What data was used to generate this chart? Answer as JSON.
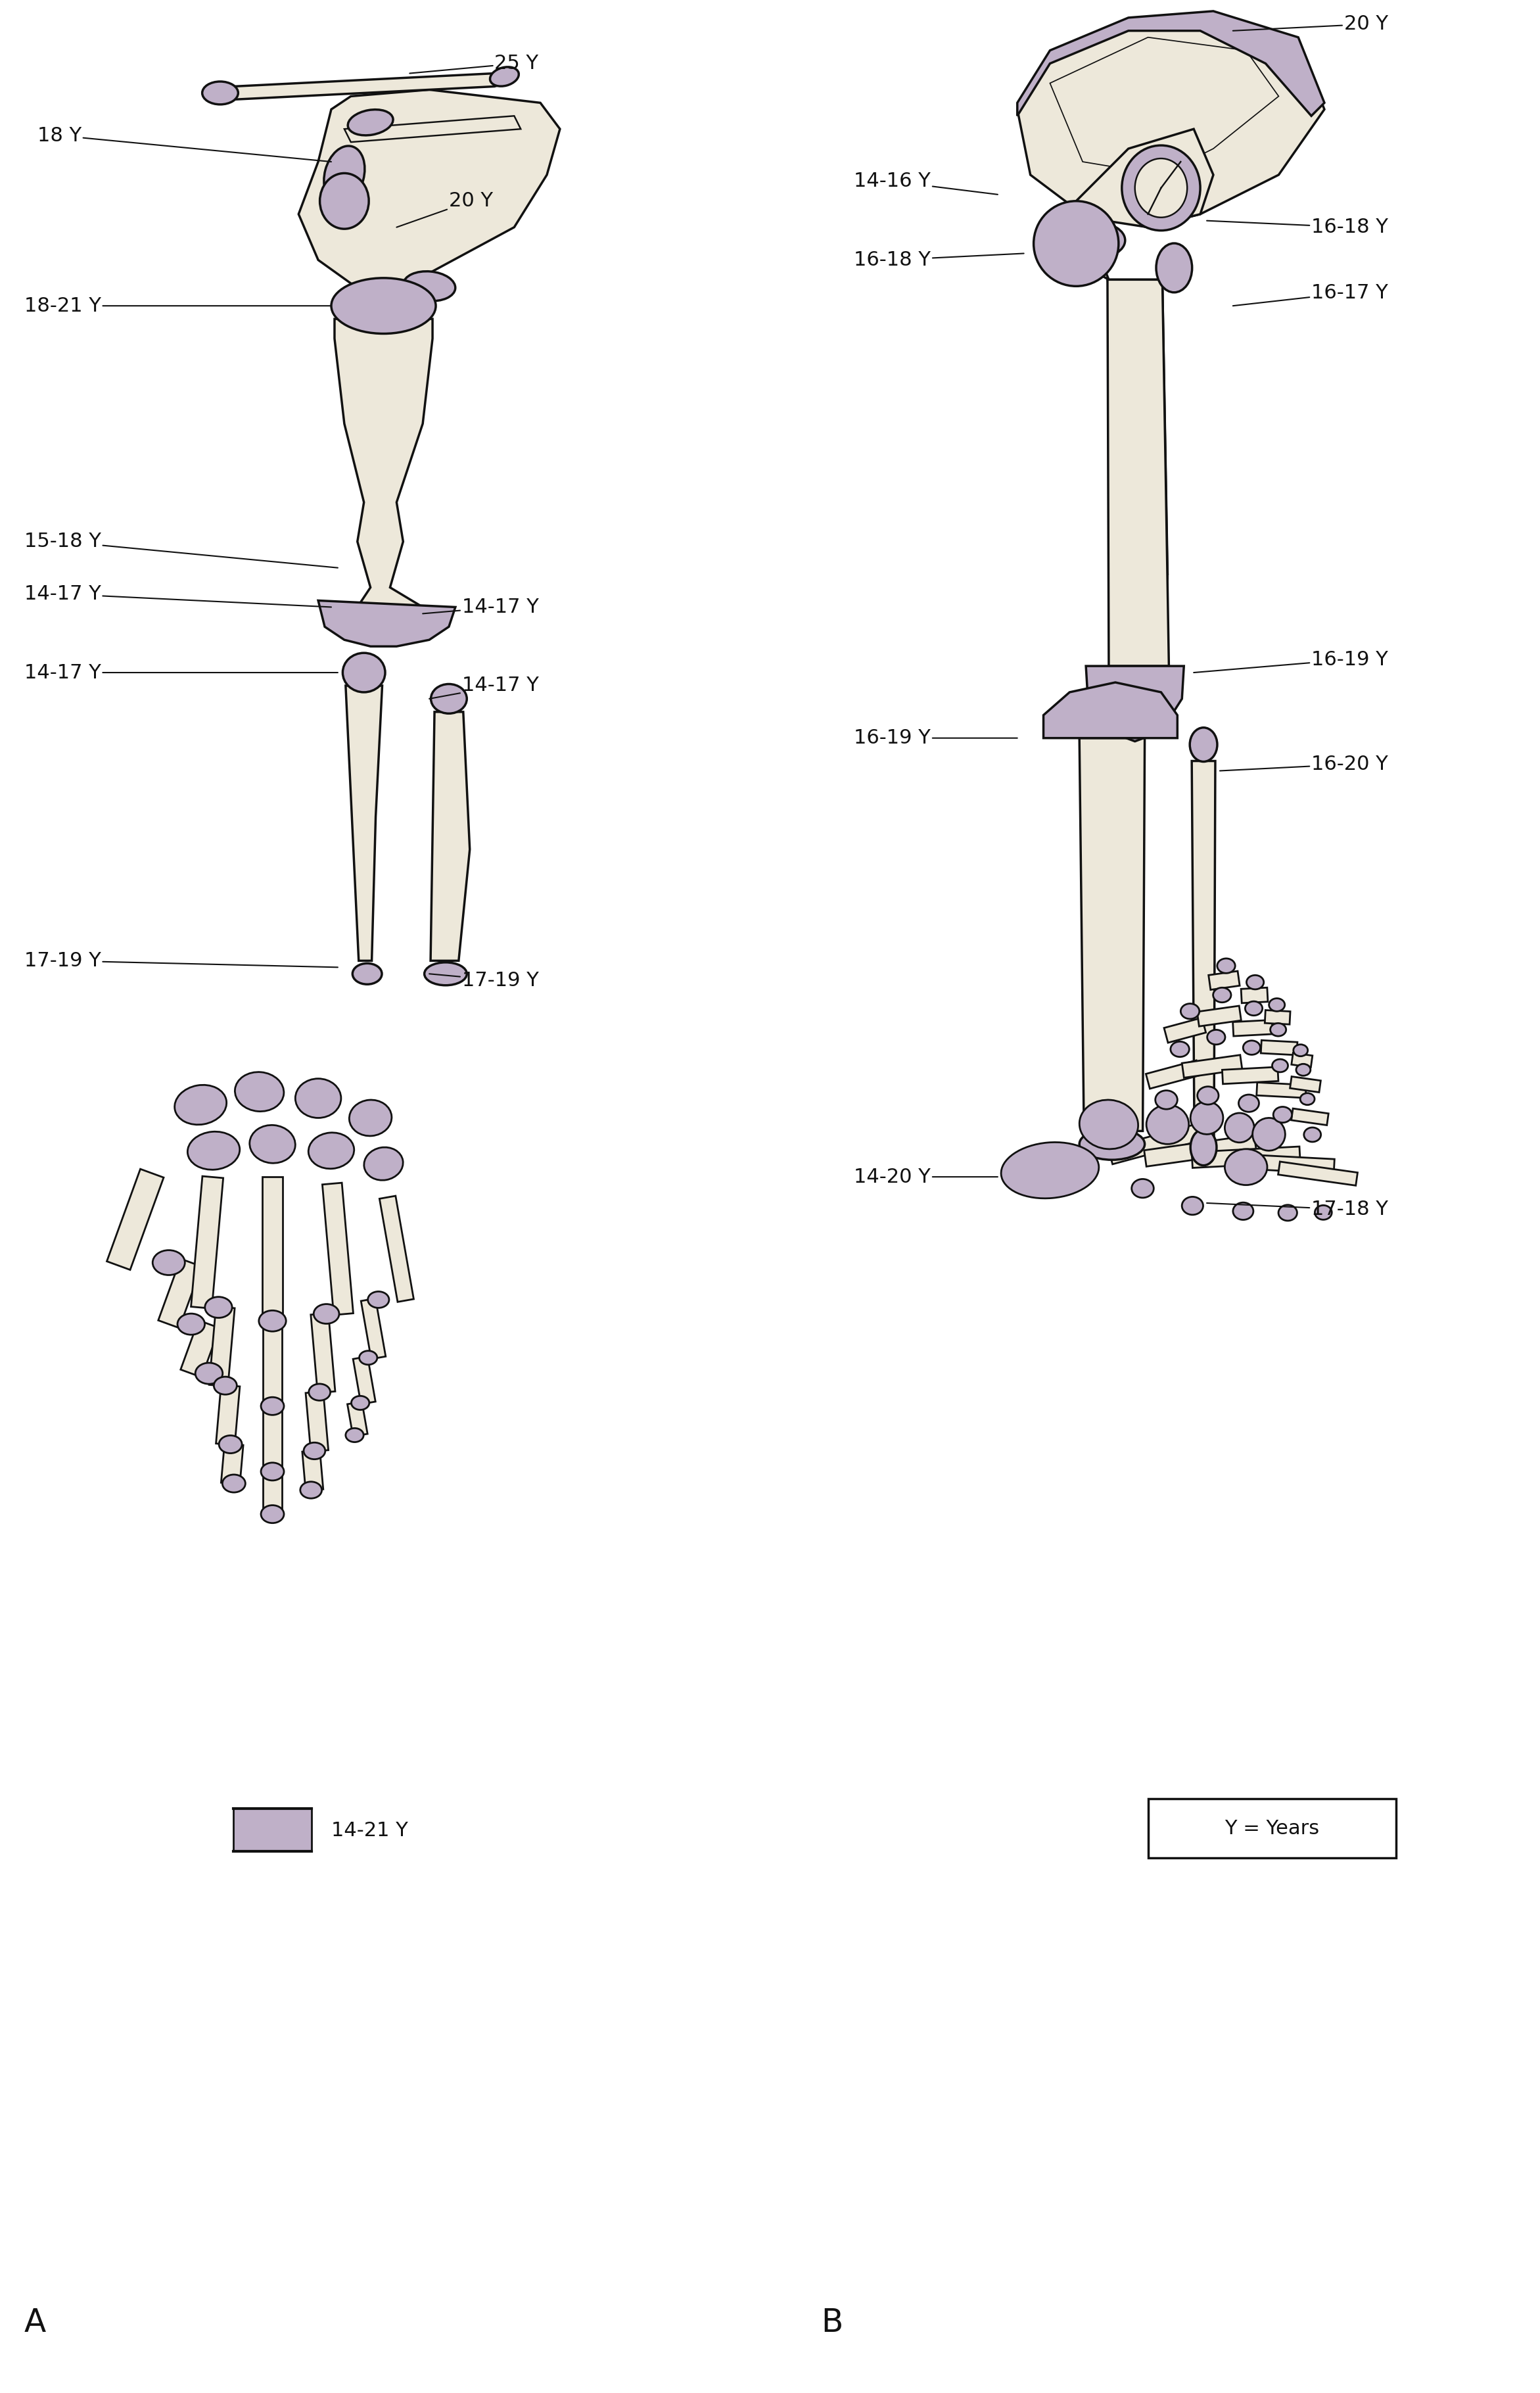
{
  "background_color": "#ffffff",
  "bone_fill_light": "#ede8da",
  "bone_fill_epiphysis": "#bfb0c8",
  "bone_outline": "#111111",
  "text_color": "#111111",
  "panel_A_label": "A",
  "panel_B_label": "B",
  "legend_A_text": "14-21 Y",
  "legend_B_text": "Y = Years",
  "font_size": 22,
  "lw": 2.5
}
